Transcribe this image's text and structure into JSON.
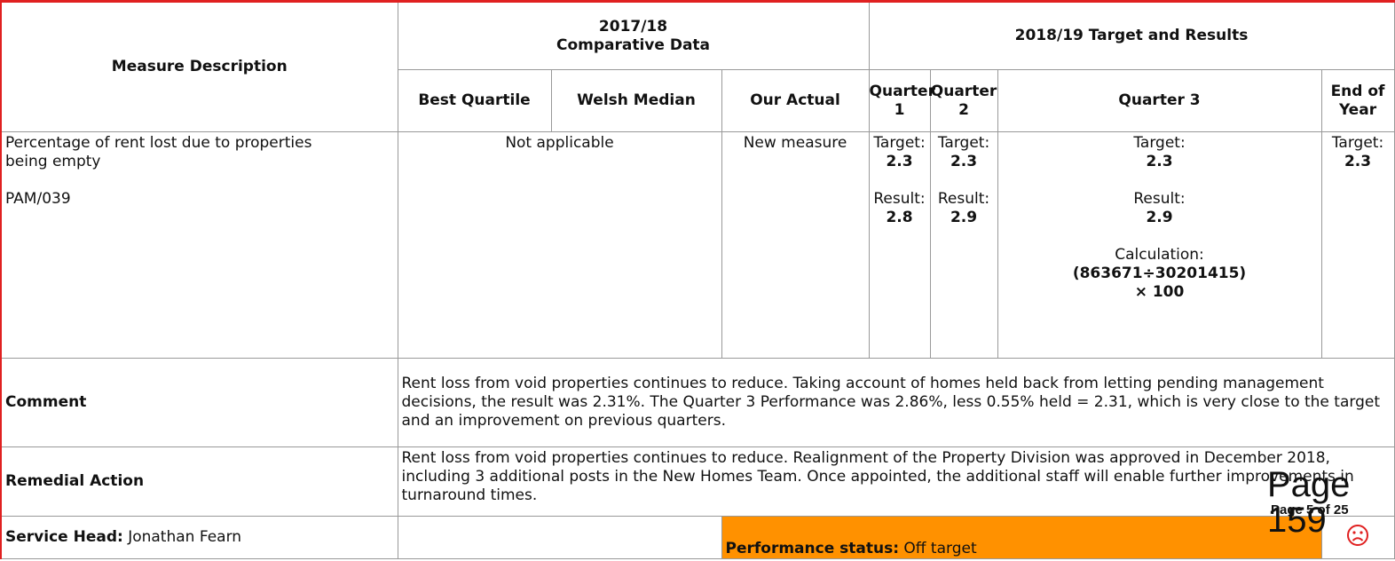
{
  "table": {
    "header": {
      "measure_description": "Measure Description",
      "comparative_period": "2017/18",
      "comparative_title": "Comparative Data",
      "target_title": "2018/19 Target and Results",
      "columns": [
        "Best Quartile",
        "Welsh Median",
        "Our Actual",
        "Quarter 1",
        "Quarter 2",
        "Quarter 3",
        "End of Year"
      ]
    },
    "measure": {
      "description": "Percentage of rent lost due to properties being empty",
      "code": "PAM/039",
      "comparative": "Not applicable",
      "our_actual": "New measure",
      "quarters": [
        {
          "target_label": "Target:",
          "target": "2.3",
          "result_label": "Result:",
          "result": "2.8"
        },
        {
          "target_label": "Target:",
          "target": "2.3",
          "result_label": "Result:",
          "result": "2.9"
        },
        {
          "target_label": "Target:",
          "target": "2.3",
          "result_label": "Result:",
          "result": "2.9",
          "calculation_label": "Calculation:",
          "calculation": "(863671÷30201415)",
          "calculation_factor": "× 100"
        },
        {
          "target_label": "Target:",
          "target": "2.3"
        }
      ]
    },
    "comment": {
      "label": "Comment",
      "text": "Rent loss from void properties continues to reduce. Taking account of homes held back from letting pending management decisions, the result was 2.31%. The Quarter 3 Performance was 2.86%, less 0.55% held = 2.31, which is very close to the target and an improvement on previous quarters."
    },
    "remedial": {
      "label": "Remedial Action",
      "text": "Rent loss from void properties continues to reduce. Realignment of the Property Division was approved in December 2018, including 3 additional posts in the New Homes Team. Once appointed, the additional staff will enable further improvements in turnaround times."
    },
    "footer": {
      "service_head_label": "Service Head:",
      "service_head": "Jonathan Fearn",
      "status_label": "Performance status:",
      "status": "Off target"
    }
  },
  "page": {
    "number": "Page 159",
    "of": "Page 5 of 25"
  }
}
